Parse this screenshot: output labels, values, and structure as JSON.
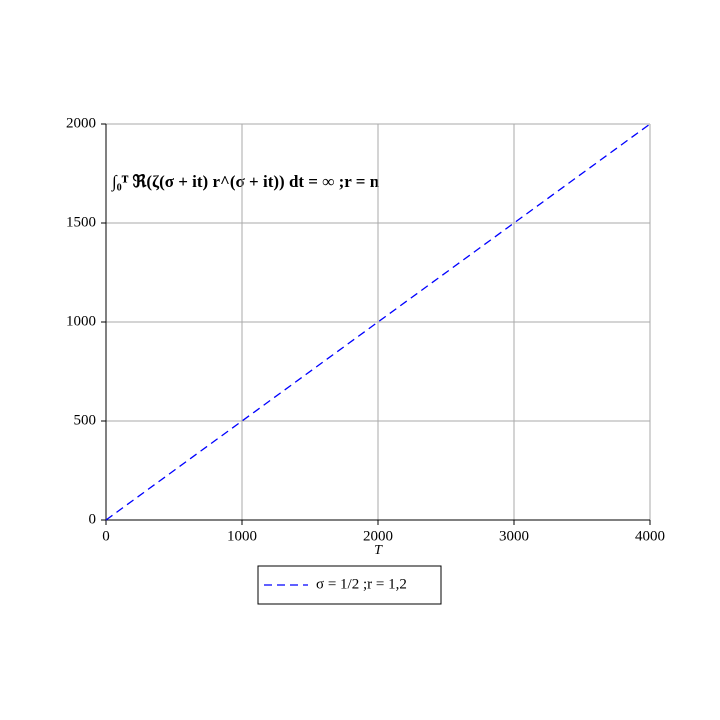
{
  "chart_data": {
    "type": "line",
    "annotation": "∫₀ᵀ ℜ(ζ(σ + it) r^(σ + it)) dt = ∞ ;r = n",
    "x_label": "T",
    "x": [
      0,
      4000
    ],
    "series": [
      {
        "name": "σ = 1/2 ;r = 1,2",
        "color": "#0000ff",
        "values": [
          0,
          2000
        ]
      }
    ],
    "xlim": [
      0,
      4000
    ],
    "xticks": [
      0,
      1000,
      2000,
      3000,
      4000
    ],
    "ylim": [
      0,
      2000
    ],
    "yticks": [
      0,
      500,
      1000,
      1500,
      2000
    ],
    "grid": true,
    "line_style": "dashed",
    "legend": "bottom"
  }
}
